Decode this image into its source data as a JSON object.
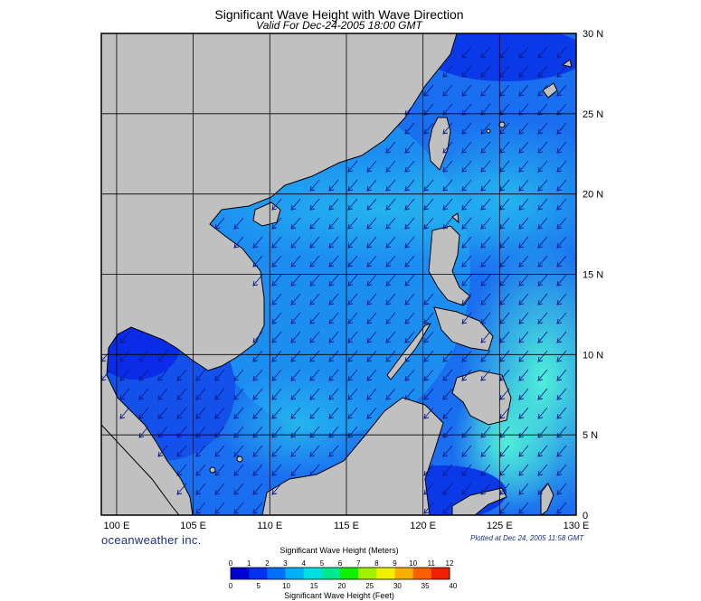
{
  "title": "Significant Wave Height with Wave Direction",
  "subtitle": "Valid For Dec-24-2005 18:00 GMT",
  "credit": "oceanweather inc.",
  "plotted": "Plotted at Dec 24, 2005 11:58 GMT",
  "map": {
    "lon_ticks": [
      "100 E",
      "105 E",
      "110 E",
      "115 E",
      "120 E",
      "125 E",
      "130 E"
    ],
    "lat_ticks": [
      "0",
      "5 N",
      "10 N",
      "15 N",
      "20 N",
      "25 N",
      "30 N"
    ],
    "lon_range": [
      99,
      130
    ],
    "lat_range": [
      0,
      30
    ],
    "wave_direction": "from northeast (arrows pointing southwest)",
    "land_color": "#c0c0c0",
    "water_colors": {
      "low": "#0a28e6",
      "mid": "#1e8cf0",
      "high": "#40e6e0"
    }
  },
  "colorbar": {
    "meters_label": "Significant Wave Height (Meters)",
    "meters_ticks": [
      "0",
      "1",
      "2",
      "3",
      "4",
      "5",
      "6",
      "7",
      "8",
      "9",
      "10",
      "11",
      "12"
    ],
    "feet_label": "Significant Wave Height (Feet)",
    "feet_ticks": [
      "0",
      "5",
      "10",
      "15",
      "20",
      "25",
      "30",
      "35",
      "40"
    ],
    "colors": [
      "#0000d0",
      "#0030f0",
      "#0070f8",
      "#00b0f8",
      "#00e0e0",
      "#00e890",
      "#10f000",
      "#a0f000",
      "#f0f000",
      "#f8b000",
      "#f86000",
      "#f02000"
    ]
  }
}
